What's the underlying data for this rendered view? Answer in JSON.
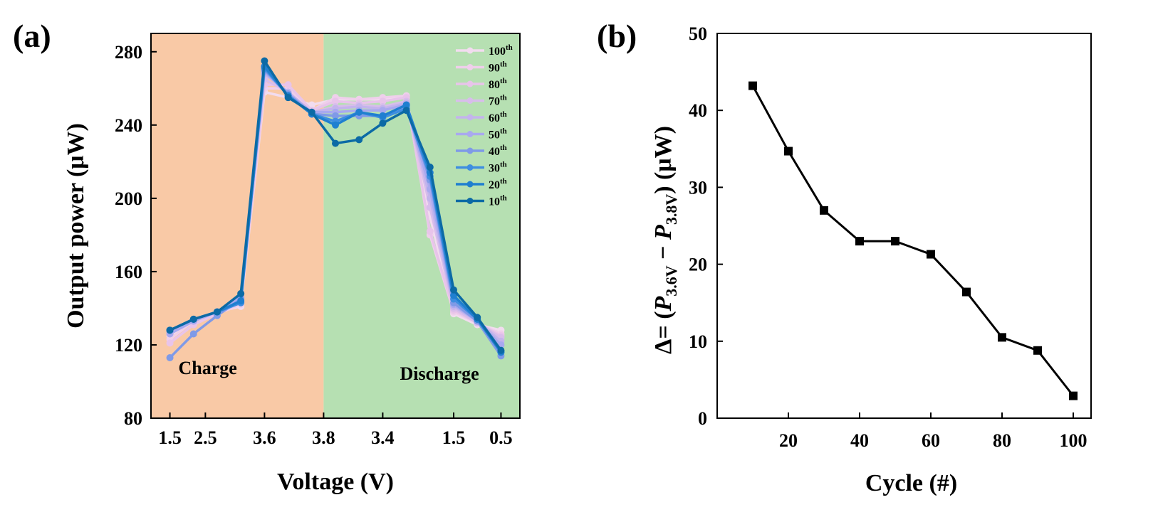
{
  "chart_data": [
    {
      "panel_label": "(a)",
      "type": "line",
      "xlabel": "Voltage (V)",
      "ylabel": "Output power (μW)",
      "ylim": [
        80,
        290
      ],
      "yticks": [
        80,
        120,
        160,
        200,
        240,
        280
      ],
      "x_positions": [
        0,
        1,
        2,
        3,
        4,
        5,
        6,
        7,
        8,
        9,
        10,
        11,
        12,
        13,
        14
      ],
      "xtick_labels": [
        {
          "pos": 0,
          "label": "1.5"
        },
        {
          "pos": 1.5,
          "label": "2.5"
        },
        {
          "pos": 4,
          "label": "3.6"
        },
        {
          "pos": 6.5,
          "label": "3.8"
        },
        {
          "pos": 9,
          "label": "3.4"
        },
        {
          "pos": 12,
          "label": "1.5"
        },
        {
          "pos": 14,
          "label": "0.5"
        }
      ],
      "regions": [
        {
          "label": "Charge",
          "from": -0.8,
          "to": 6.5,
          "color": "#f9c9a6"
        },
        {
          "label": "Discharge",
          "from": 6.5,
          "to": 14.8,
          "color": "#b6e0b2"
        }
      ],
      "legend": {
        "placement": "top-right"
      },
      "series": [
        {
          "name": "100",
          "sup": "th",
          "color": "#f2dcef",
          "values": [
            125,
            134,
            138,
            141,
            258,
            255,
            251,
            254,
            254,
            254,
            255,
            190,
            137,
            131,
            128
          ]
        },
        {
          "name": "90",
          "sup": "th",
          "color": "#efcfeb",
          "values": [
            123,
            133,
            137,
            142,
            260,
            260,
            248,
            255,
            254,
            255,
            256,
            180,
            138,
            132,
            126
          ]
        },
        {
          "name": "80",
          "sup": "th",
          "color": "#e8c4ea",
          "values": [
            121,
            131,
            137,
            143,
            262,
            262,
            248,
            253,
            252,
            253,
            255,
            182,
            139,
            132,
            125
          ]
        },
        {
          "name": "70",
          "sup": "th",
          "color": "#d8bdeb",
          "values": [
            126,
            133,
            138,
            144,
            265,
            258,
            247,
            250,
            251,
            250,
            253,
            195,
            140,
            132,
            124
          ]
        },
        {
          "name": "60",
          "sup": "th",
          "color": "#c3b4ec",
          "values": [
            127,
            133,
            138,
            145,
            268,
            258,
            247,
            249,
            250,
            249,
            252,
            200,
            141,
            133,
            122
          ]
        },
        {
          "name": "50",
          "sup": "th",
          "color": "#a9a9ef",
          "values": [
            126,
            133,
            138,
            146,
            269,
            257,
            247,
            247,
            248,
            248,
            251,
            205,
            142,
            133,
            120
          ]
        },
        {
          "name": "40",
          "sup": "th",
          "color": "#7f9ae7",
          "values": [
            113,
            126,
            136,
            145,
            270,
            257,
            246,
            245,
            245,
            245,
            250,
            210,
            143,
            133,
            114
          ]
        },
        {
          "name": "30",
          "sup": "th",
          "color": "#3e8ee0",
          "values": [
            128,
            134,
            138,
            143,
            271,
            256,
            246,
            242,
            247,
            244,
            249,
            212,
            145,
            134,
            116
          ]
        },
        {
          "name": "20",
          "sup": "th",
          "color": "#1f7fd0",
          "values": [
            128,
            134,
            138,
            144,
            272,
            256,
            246,
            240,
            247,
            245,
            251,
            214,
            147,
            134,
            116
          ]
        },
        {
          "name": "10",
          "sup": "th",
          "color": "#0c6aa5",
          "values": [
            128,
            134,
            138,
            148,
            275,
            255,
            247,
            230,
            232,
            241,
            248,
            217,
            150,
            135,
            117
          ]
        }
      ],
      "annotations": [
        "Charge",
        "Discharge"
      ]
    },
    {
      "panel_label": "(b)",
      "type": "line",
      "xlabel": "Cycle (#)",
      "ylabel": {
        "prefix": "Δ= (",
        "term1": "P",
        "term1_sub": "3.6V",
        "minus": " − ",
        "term2": "P",
        "term2_sub": "3.8V",
        "suffix": ") (μW)"
      },
      "xlim": [
        0,
        105
      ],
      "ylim": [
        0,
        50
      ],
      "xticks": [
        20,
        40,
        60,
        80,
        100
      ],
      "yticks": [
        0,
        10,
        20,
        30,
        40,
        50
      ],
      "x": [
        10,
        20,
        30,
        40,
        50,
        60,
        70,
        80,
        90,
        100
      ],
      "values": [
        43.2,
        34.7,
        27.0,
        23.0,
        23.0,
        21.3,
        16.4,
        10.5,
        8.8,
        2.9
      ],
      "color": "#000000"
    }
  ]
}
